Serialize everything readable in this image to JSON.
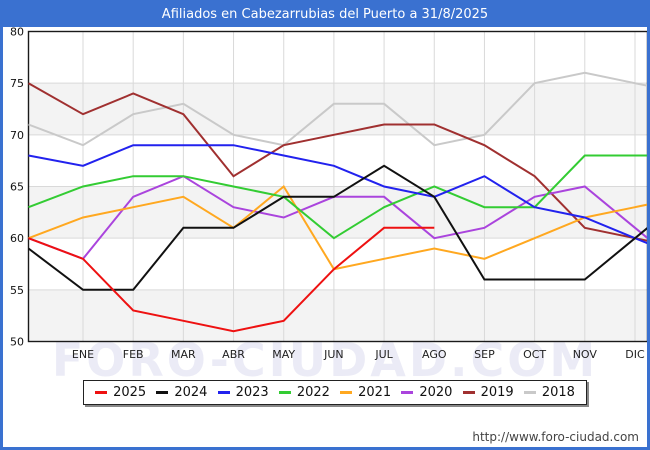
{
  "title": {
    "text": "Afiliados en Cabezarrubias del Puerto a 31/8/2025"
  },
  "watermark": "FORO-CIUDAD.COM",
  "footer": {
    "url": "http://www.foro-ciudad.com"
  },
  "colors": {
    "frame_blue": "#3a71d0",
    "band_gray": "#f3f3f3",
    "gridline": "#d9d9d9",
    "axis": "#1a1a1a"
  },
  "chart_data": {
    "type": "line",
    "title": "Afiliados en Cabezarrubias del Puerto a 31/8/2025",
    "x_categories": [
      "ENE",
      "FEB",
      "MAR",
      "ABR",
      "MAY",
      "JUN",
      "JUL",
      "AGO",
      "SEP",
      "OCT",
      "NOV",
      "DIC"
    ],
    "ylim": [
      50,
      80
    ],
    "yticks": [
      50,
      55,
      60,
      65,
      70,
      75,
      80
    ],
    "grid": true,
    "shaded_bands": [
      [
        50,
        55
      ],
      [
        60,
        65
      ],
      [
        70,
        75
      ]
    ],
    "legend_position": "bottom",
    "start_note": "each series has a lead-in value drawn at the left axis before ENE",
    "series": [
      {
        "name": "2025",
        "color": "#ee1111",
        "start": 60,
        "values": [
          58,
          53,
          52,
          51,
          52,
          57,
          61,
          61
        ]
      },
      {
        "name": "2024",
        "color": "#111111",
        "start": 59,
        "values": [
          55,
          55,
          61,
          61,
          64,
          64,
          67,
          64,
          56,
          56,
          56,
          60
        ]
      },
      {
        "name": "2023",
        "color": "#2222ee",
        "start": 68,
        "values": [
          67,
          69,
          69,
          69,
          68,
          67,
          65,
          64,
          66,
          63,
          62,
          60
        ]
      },
      {
        "name": "2022",
        "color": "#33cc33",
        "start": 63,
        "values": [
          65,
          66,
          66,
          65,
          64,
          60,
          63,
          65,
          63,
          63,
          68,
          68
        ]
      },
      {
        "name": "2021",
        "color": "#ffa820",
        "start": 60,
        "values": [
          62,
          63,
          64,
          61,
          65,
          57,
          58,
          59,
          58,
          60,
          62,
          63
        ]
      },
      {
        "name": "2020",
        "color": "#aa44dd",
        "start": 60,
        "values": [
          58,
          64,
          66,
          63,
          62,
          64,
          64,
          60,
          61,
          64,
          65,
          61
        ]
      },
      {
        "name": "2019",
        "color": "#a03030",
        "start": 75,
        "values": [
          72,
          74,
          72,
          66,
          69,
          70,
          71,
          71,
          69,
          66,
          61,
          60
        ]
      },
      {
        "name": "2018",
        "color": "#c9c9c9",
        "start": 71,
        "values": [
          69,
          72,
          73,
          70,
          69,
          73,
          73,
          69,
          70,
          75,
          76,
          75
        ]
      }
    ]
  }
}
